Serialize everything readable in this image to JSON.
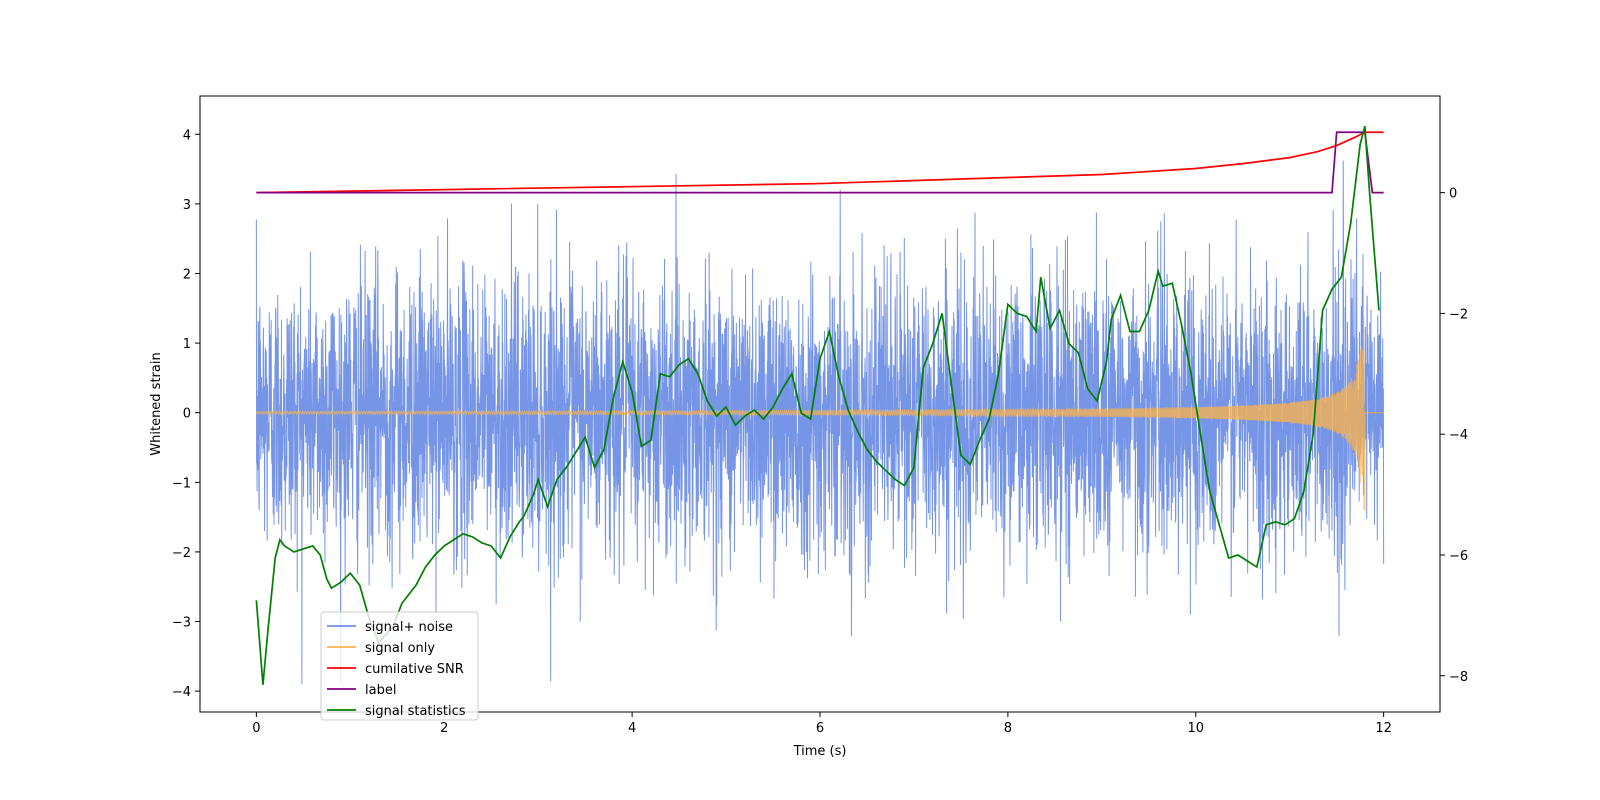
{
  "chart_data": {
    "type": "line",
    "title": "",
    "xlabel": "Time (s)",
    "ylabel": "Whitened strain",
    "y2label": "",
    "xlim": [
      -0.6,
      12.6
    ],
    "ylim": [
      -4.3,
      4.55
    ],
    "y2lim": [
      -8.6,
      1.6
    ],
    "xticks": [
      0,
      2,
      4,
      6,
      8,
      10,
      12
    ],
    "yticks": [
      -4,
      -3,
      -2,
      -1,
      0,
      1,
      2,
      3,
      4
    ],
    "y2ticks": [
      -8,
      -6,
      -4,
      -2,
      0
    ],
    "grid": false,
    "legend_position": "lower-left",
    "colors": {
      "noise": "#6f8fe6",
      "signal": "#ffb347",
      "snr": "#ff0000",
      "label": "#800080",
      "stats": "#008000"
    },
    "series": [
      {
        "name": "signal+ noise",
        "axis": "left",
        "color": "#6f8fe6",
        "x_range": [
          0,
          12
        ],
        "amplitude_sigma": 1.0,
        "peak_range": [
          -3.9,
          4.2
        ],
        "note": "whitened noise (values illustrative)"
      },
      {
        "name": "signal only",
        "axis": "left",
        "color": "#ffb347",
        "x_range": [
          0,
          12
        ],
        "envelope_start": 0.02,
        "envelope_peak": 1.7,
        "peak_time": 11.8,
        "note": "chirp with growing amplitude"
      },
      {
        "name": "cumilative SNR",
        "axis": "right",
        "color": "#ff0000",
        "x": [
          0,
          2,
          4,
          6,
          8,
          9,
          10,
          10.5,
          11,
          11.3,
          11.5,
          11.7,
          11.8,
          12
        ],
        "y": [
          0,
          0.05,
          0.1,
          0.15,
          0.25,
          0.3,
          0.4,
          0.48,
          0.58,
          0.68,
          0.78,
          0.92,
          1.0,
          1.0
        ]
      },
      {
        "name": "label",
        "axis": "right",
        "color": "#800080",
        "x": [
          0,
          11.45,
          11.5,
          11.8,
          11.88,
          12
        ],
        "y": [
          0,
          0,
          1,
          1,
          0,
          0
        ]
      },
      {
        "name": "signal statistics",
        "axis": "right",
        "color": "#008000",
        "x": [
          0,
          0.07,
          0.12,
          0.2,
          0.25,
          0.3,
          0.4,
          0.5,
          0.6,
          0.68,
          0.75,
          0.8,
          0.9,
          1.0,
          1.1,
          1.2,
          1.3,
          1.45,
          1.55,
          1.7,
          1.8,
          1.9,
          2.0,
          2.1,
          2.2,
          2.3,
          2.4,
          2.5,
          2.6,
          2.7,
          2.8,
          2.85,
          2.95,
          3.0,
          3.1,
          3.2,
          3.3,
          3.4,
          3.5,
          3.6,
          3.7,
          3.8,
          3.9,
          4.0,
          4.1,
          4.2,
          4.3,
          4.4,
          4.5,
          4.6,
          4.7,
          4.8,
          4.9,
          5.0,
          5.1,
          5.2,
          5.3,
          5.4,
          5.5,
          5.6,
          5.7,
          5.8,
          5.9,
          6.0,
          6.1,
          6.2,
          6.3,
          6.4,
          6.5,
          6.6,
          6.7,
          6.8,
          6.9,
          7.0,
          7.05,
          7.1,
          7.2,
          7.3,
          7.4,
          7.5,
          7.6,
          7.7,
          7.8,
          7.9,
          8.0,
          8.1,
          8.2,
          8.3,
          8.35,
          8.45,
          8.55,
          8.65,
          8.75,
          8.85,
          8.95,
          9.05,
          9.1,
          9.2,
          9.3,
          9.4,
          9.5,
          9.6,
          9.65,
          9.75,
          9.85,
          9.95,
          10.05,
          10.15,
          10.25,
          10.35,
          10.45,
          10.55,
          10.65,
          10.75,
          10.85,
          10.95,
          11.05,
          11.15,
          11.25,
          11.35,
          11.45,
          11.55,
          11.65,
          11.75,
          11.8,
          11.85,
          11.95
        ],
        "y": [
          -6.75,
          -8.15,
          -7.3,
          -6.05,
          -5.75,
          -5.85,
          -5.95,
          -5.9,
          -5.85,
          -6.0,
          -6.4,
          -6.55,
          -6.45,
          -6.3,
          -6.5,
          -7.05,
          -7.45,
          -7.2,
          -6.8,
          -6.5,
          -6.2,
          -6.0,
          -5.85,
          -5.75,
          -5.65,
          -5.7,
          -5.8,
          -5.85,
          -6.05,
          -5.7,
          -5.45,
          -5.35,
          -5.0,
          -4.75,
          -5.2,
          -4.75,
          -4.55,
          -4.3,
          -4.05,
          -4.55,
          -4.25,
          -3.4,
          -2.8,
          -3.3,
          -4.2,
          -4.1,
          -3.0,
          -3.05,
          -2.85,
          -2.75,
          -3.0,
          -3.45,
          -3.7,
          -3.55,
          -3.85,
          -3.7,
          -3.6,
          -3.75,
          -3.55,
          -3.25,
          -3.0,
          -3.65,
          -3.75,
          -2.75,
          -2.3,
          -3.05,
          -3.6,
          -3.95,
          -4.25,
          -4.45,
          -4.6,
          -4.75,
          -4.85,
          -4.55,
          -3.7,
          -2.9,
          -2.5,
          -2.0,
          -3.2,
          -4.35,
          -4.5,
          -4.1,
          -3.75,
          -3.0,
          -1.85,
          -2.0,
          -2.05,
          -2.3,
          -1.4,
          -2.25,
          -1.95,
          -2.5,
          -2.65,
          -3.25,
          -3.45,
          -2.8,
          -2.1,
          -1.7,
          -2.3,
          -2.3,
          -1.95,
          -1.3,
          -1.55,
          -1.5,
          -2.2,
          -3.0,
          -4.0,
          -4.95,
          -5.5,
          -6.05,
          -6.0,
          -6.1,
          -6.2,
          -5.5,
          -5.45,
          -5.5,
          -5.4,
          -4.95,
          -4.0,
          -1.95,
          -1.6,
          -1.4,
          -0.5,
          0.8,
          1.1,
          0.0,
          -1.95
        ]
      }
    ],
    "legend": [
      "signal+ noise",
      "signal only",
      "cumilative SNR",
      "label",
      "signal statistics"
    ]
  }
}
